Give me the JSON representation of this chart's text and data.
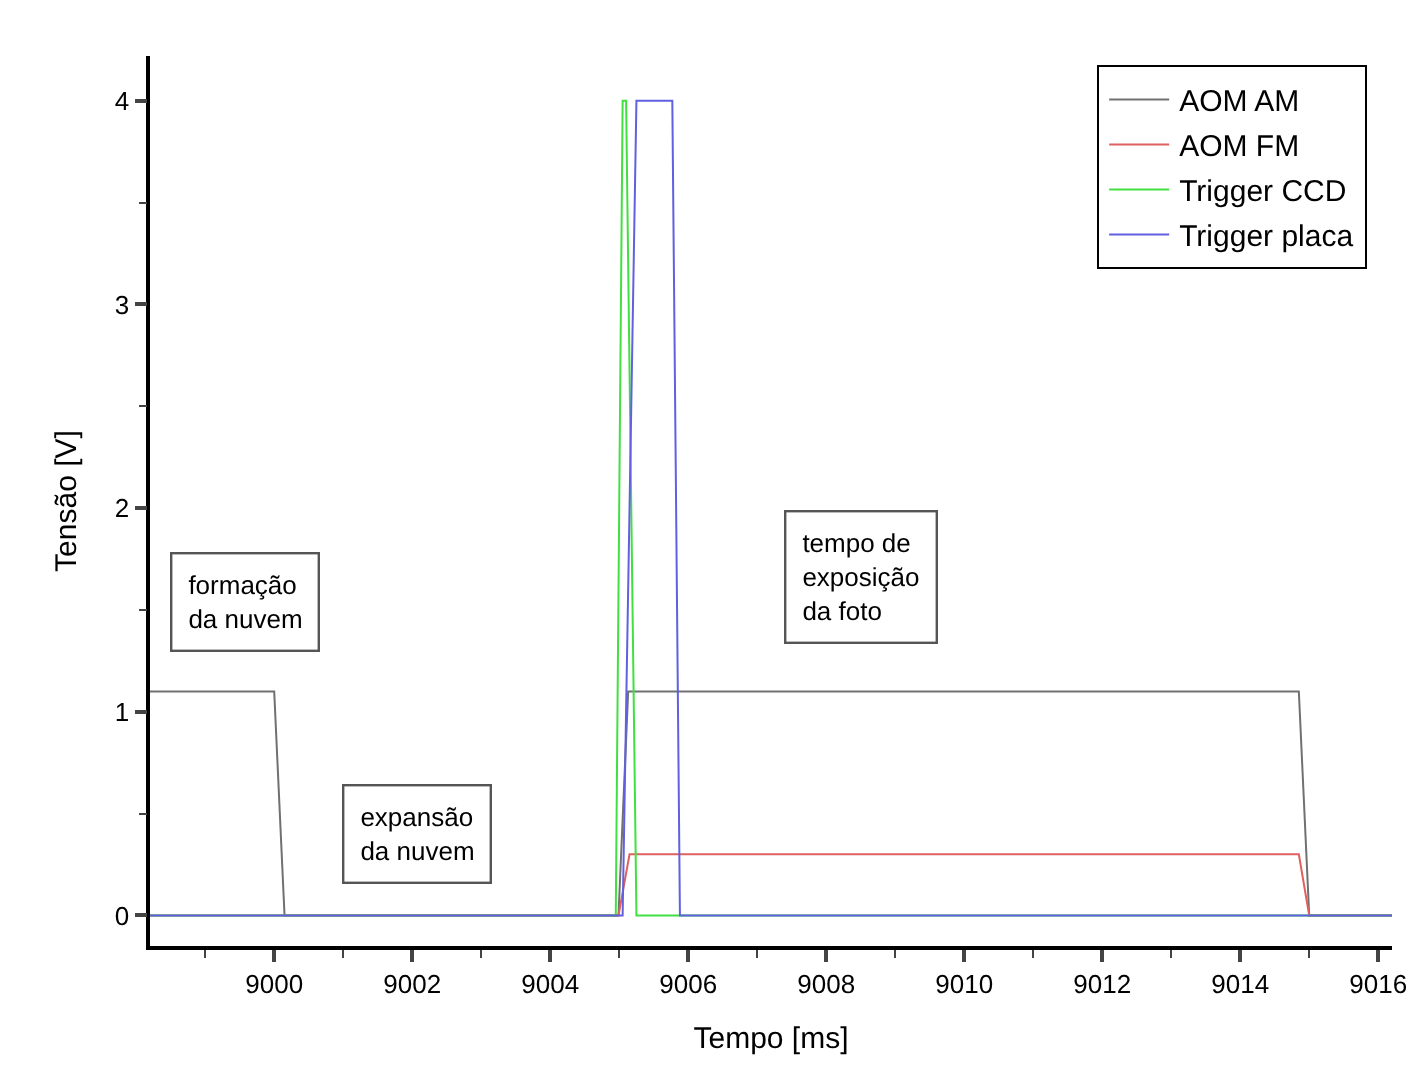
{
  "chart_data": {
    "type": "line",
    "xlabel": "Tempo [ms]",
    "ylabel": "Tensão [V]",
    "xlim": [
      8998.2,
      9016.2
    ],
    "xticks": [
      9000,
      9002,
      9004,
      9006,
      9008,
      9010,
      9012,
      9014,
      9016
    ],
    "ylim": [
      -0.15,
      4.22
    ],
    "yticks": [
      0,
      1,
      2,
      3,
      4
    ],
    "legend": "top right",
    "marker": "none",
    "line_style": "solid",
    "series": [
      {
        "name": "AOM AM",
        "color": "#707070",
        "x": [
          8998.2,
          9000.0,
          9000.15,
          9004.99,
          9005.13,
          9014.85,
          9015.0,
          9016.2
        ],
        "values": [
          1.1,
          1.1,
          0,
          0,
          1.1,
          1.1,
          0,
          0
        ]
      },
      {
        "name": "AOM FM",
        "color": "#e06060",
        "x": [
          8998.2,
          9004.99,
          9005.15,
          9014.85,
          9015.0,
          9016.2
        ],
        "values": [
          0,
          0,
          0.3,
          0.3,
          0,
          0
        ]
      },
      {
        "name": "Trigger CCD",
        "color": "#40e040",
        "x": [
          8998.2,
          9004.95,
          9005.05,
          9005.1,
          9005.25,
          9016.2
        ],
        "values": [
          0,
          0,
          4,
          4,
          0,
          0
        ]
      },
      {
        "name": "Trigger placa",
        "color": "#6060e0",
        "x": [
          8998.2,
          9005.05,
          9005.25,
          9005.77,
          9005.88,
          9016.2
        ],
        "values": [
          0,
          0,
          4,
          4,
          0,
          0
        ]
      }
    ],
    "annotations": [
      "formação\nda nuvem",
      "expansão\nda nuvem",
      "tempo de\nexposição\nda foto"
    ]
  }
}
